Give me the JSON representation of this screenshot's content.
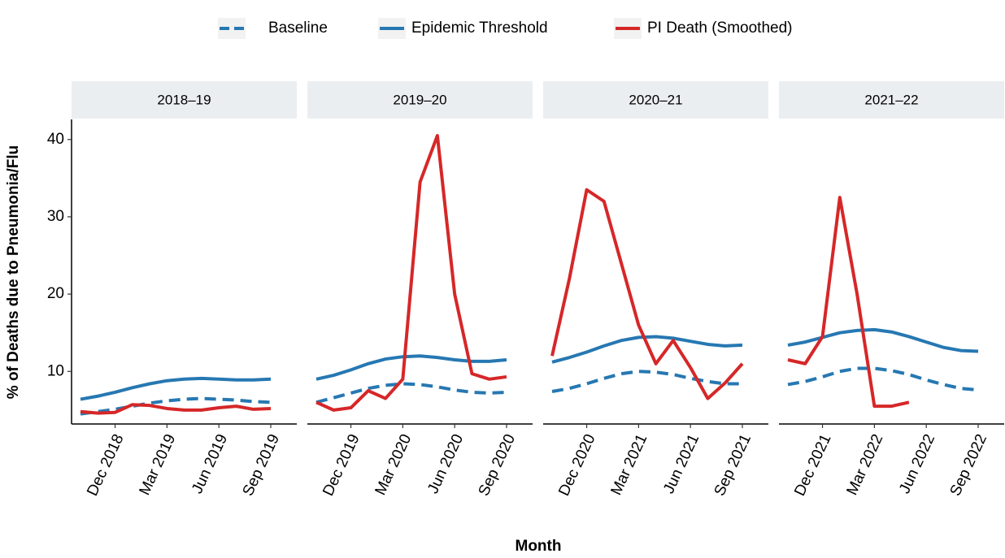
{
  "chart_data": {
    "type": "line",
    "x_label": "Month",
    "y_label": "% of Deaths due to Pneumonia/Flu",
    "ylim": [
      3.2,
      42.6
    ],
    "yticks": [
      10,
      20,
      30,
      40
    ],
    "series": [
      {
        "name": "Baseline",
        "color": "#2678b2",
        "dashed": true
      },
      {
        "name": "Epidemic Threshold",
        "color": "#2678b2",
        "dashed": false
      },
      {
        "name": "PI Death (Smoothed)",
        "color": "#d62728",
        "dashed": false
      }
    ],
    "facets": [
      {
        "title": "2018–19",
        "x": [
          "2018-10",
          "2018-11",
          "2018-12",
          "2019-01",
          "2019-02",
          "2019-03",
          "2019-04",
          "2019-05",
          "2019-06",
          "2019-07",
          "2019-08",
          "2019-09"
        ],
        "xlim": [
          "2018-10",
          "2019-09"
        ],
        "xticks": [
          {
            "value": "2018-12",
            "label": "Dec 2018"
          },
          {
            "value": "2019-03",
            "label": "Mar 2019"
          },
          {
            "value": "2019-06",
            "label": "Jun 2019"
          },
          {
            "value": "2019-09",
            "label": "Sep 2019"
          }
        ],
        "values": [
          [
            4.5,
            4.8,
            5.1,
            5.5,
            5.9,
            6.2,
            6.4,
            6.5,
            6.4,
            6.3,
            6.1,
            6.0
          ],
          [
            6.4,
            6.8,
            7.3,
            7.9,
            8.4,
            8.8,
            9.0,
            9.1,
            9.0,
            8.9,
            8.9,
            9.0
          ],
          [
            4.8,
            4.6,
            4.7,
            5.7,
            5.6,
            5.2,
            5.0,
            5.0,
            5.3,
            5.5,
            5.1,
            5.2
          ]
        ]
      },
      {
        "title": "2019–20",
        "x": [
          "2019-10",
          "2019-11",
          "2019-12",
          "2020-01",
          "2020-02",
          "2020-03",
          "2020-04",
          "2020-05",
          "2020-06",
          "2020-07",
          "2020-08",
          "2020-09"
        ],
        "xlim": [
          "2019-10",
          "2020-09"
        ],
        "xticks": [
          {
            "value": "2019-12",
            "label": "Dec 2019"
          },
          {
            "value": "2020-03",
            "label": "Mar 2020"
          },
          {
            "value": "2020-06",
            "label": "Jun 2020"
          },
          {
            "value": "2020-09",
            "label": "Sep 2020"
          }
        ],
        "values": [
          [
            6.0,
            6.6,
            7.2,
            7.8,
            8.2,
            8.4,
            8.3,
            8.0,
            7.6,
            7.3,
            7.2,
            7.3
          ],
          [
            9.0,
            9.5,
            10.2,
            11.0,
            11.6,
            11.9,
            12.0,
            11.8,
            11.5,
            11.3,
            11.3,
            11.5
          ],
          [
            6.0,
            5.0,
            5.3,
            7.5,
            6.5,
            9.0,
            34.5,
            40.5,
            20.0,
            9.7,
            9.0,
            9.3
          ]
        ]
      },
      {
        "title": "2020–21",
        "x": [
          "2020-10",
          "2020-11",
          "2020-12",
          "2021-01",
          "2021-02",
          "2021-03",
          "2021-04",
          "2021-05",
          "2021-06",
          "2021-07",
          "2021-08",
          "2021-09"
        ],
        "xlim": [
          "2020-10",
          "2021-09"
        ],
        "xticks": [
          {
            "value": "2020-12",
            "label": "Dec 2020"
          },
          {
            "value": "2021-03",
            "label": "Mar 2021"
          },
          {
            "value": "2021-06",
            "label": "Jun 2021"
          },
          {
            "value": "2021-09",
            "label": "Sep 2021"
          }
        ],
        "values": [
          [
            7.4,
            7.8,
            8.4,
            9.1,
            9.7,
            10.0,
            9.9,
            9.6,
            9.1,
            8.7,
            8.4,
            8.4
          ],
          [
            11.2,
            11.8,
            12.5,
            13.3,
            14.0,
            14.4,
            14.5,
            14.3,
            13.9,
            13.5,
            13.3,
            13.4
          ],
          [
            12.0,
            22.0,
            33.5,
            32.0,
            24.0,
            16.0,
            11.0,
            14.0,
            10.5,
            6.5,
            8.5,
            11.0
          ]
        ]
      },
      {
        "title": "2021–22",
        "x": [
          "2021-10",
          "2021-11",
          "2021-12",
          "2022-01",
          "2022-02",
          "2022-03",
          "2022-04",
          "2022-05",
          "2022-06",
          "2022-07",
          "2022-08",
          "2022-09"
        ],
        "xlim": [
          "2021-10",
          "2022-09"
        ],
        "xticks": [
          {
            "value": "2021-12",
            "label": "Dec 2021"
          },
          {
            "value": "2022-03",
            "label": "Mar 2022"
          },
          {
            "value": "2022-06",
            "label": "Jun 2022"
          },
          {
            "value": "2022-09",
            "label": "Sep 2022"
          }
        ],
        "values": [
          [
            8.3,
            8.7,
            9.3,
            10.0,
            10.4,
            10.4,
            10.1,
            9.6,
            8.9,
            8.3,
            7.8,
            7.6
          ],
          [
            13.4,
            13.8,
            14.4,
            15.0,
            15.3,
            15.4,
            15.1,
            14.5,
            13.8,
            13.1,
            12.7,
            12.6
          ],
          [
            11.5,
            11.0,
            14.5,
            32.5,
            20.0,
            5.5,
            5.5,
            6.0,
            null,
            null,
            null,
            null
          ]
        ]
      }
    ]
  }
}
